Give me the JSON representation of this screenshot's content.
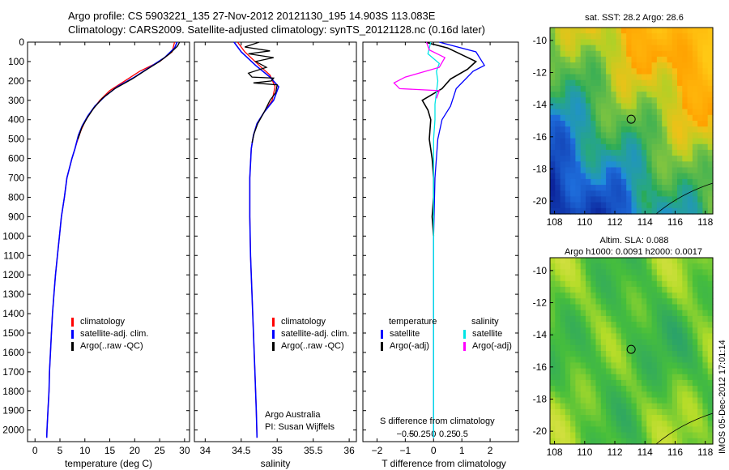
{
  "header": {
    "line1": "Argo profile: CS 5903221_135 27-Nov-2012 20121130_195 14.903S 113.083E",
    "line2": "Climatology: CARS2009. Satellite-adjusted climatology: synTS_20121128.nc (0.16d later)"
  },
  "colors": {
    "climatology": "#ff0000",
    "satellite": "#0000ff",
    "argo": "#000000",
    "sat_salinity": "#00e5e5",
    "argo_adj_salinity": "#ff00ff"
  },
  "chart_data": [
    {
      "id": "temperature",
      "type": "line",
      "xlabel": "temperature (deg C)",
      "xlim": [
        -1.5,
        31
      ],
      "ylim": [
        2060,
        0
      ],
      "xticks": [
        0,
        5,
        10,
        15,
        20,
        25,
        30
      ],
      "xtick_labels": [
        "0",
        "5",
        "10",
        "15",
        "20",
        "25",
        "30"
      ],
      "yticks": [
        0,
        100,
        200,
        300,
        400,
        500,
        600,
        700,
        800,
        900,
        1000,
        1100,
        1200,
        1300,
        1400,
        1500,
        1600,
        1700,
        1800,
        1900,
        2000
      ],
      "ytick_labels": [
        "0",
        "100",
        "200",
        "300",
        "400",
        "500",
        "600",
        "700",
        "800",
        "900",
        "1000",
        "1100",
        "1200",
        "1300",
        "1400",
        "1500",
        "1600",
        "1700",
        "1800",
        "1900",
        "2000"
      ],
      "series": [
        {
          "name": "climatology",
          "color": "#ff0000",
          "points": [
            [
              28,
              0
            ],
            [
              27.5,
              50
            ],
            [
              25,
              100
            ],
            [
              21,
              150
            ],
            [
              18,
              200
            ],
            [
              15,
              250
            ],
            [
              13,
              300
            ],
            [
              11.5,
              350
            ],
            [
              10.2,
              400
            ],
            [
              9.3,
              450
            ],
            [
              8.6,
              500
            ],
            [
              8,
              550
            ],
            [
              7.4,
              600
            ],
            [
              6.9,
              650
            ],
            [
              6.4,
              700
            ],
            [
              5.9,
              800
            ],
            [
              5.3,
              900
            ],
            [
              4.9,
              1000
            ],
            [
              4.5,
              1100
            ],
            [
              4.1,
              1200
            ],
            [
              3.8,
              1300
            ],
            [
              3.5,
              1400
            ],
            [
              3.3,
              1500
            ],
            [
              3.1,
              1600
            ],
            [
              2.9,
              1700
            ],
            [
              2.8,
              1800
            ],
            [
              2.6,
              1900
            ],
            [
              2.4,
              2000
            ],
            [
              2.35,
              2040
            ]
          ]
        },
        {
          "name": "satellite-adj. clim.",
          "color": "#0000ff",
          "points": [
            [
              28.5,
              0
            ],
            [
              28,
              30
            ],
            [
              26,
              80
            ],
            [
              23,
              130
            ],
            [
              20,
              180
            ],
            [
              16.5,
              230
            ],
            [
              14,
              280
            ],
            [
              12,
              330
            ],
            [
              10.6,
              380
            ],
            [
              9.5,
              430
            ],
            [
              8.7,
              480
            ],
            [
              8,
              550
            ],
            [
              7.4,
              600
            ],
            [
              6.9,
              650
            ],
            [
              6.4,
              700
            ],
            [
              5.9,
              800
            ],
            [
              5.3,
              900
            ],
            [
              4.9,
              1000
            ],
            [
              4.5,
              1100
            ],
            [
              4.1,
              1200
            ],
            [
              3.8,
              1300
            ],
            [
              3.5,
              1400
            ],
            [
              3.3,
              1500
            ],
            [
              3.1,
              1600
            ],
            [
              2.9,
              1700
            ],
            [
              2.8,
              1800
            ],
            [
              2.6,
              1900
            ],
            [
              2.4,
              2000
            ],
            [
              2.35,
              2040
            ]
          ]
        },
        {
          "name": "Argo(..raw -QC)",
          "color": "#000000",
          "points": [
            [
              29,
              0
            ],
            [
              28.6,
              20
            ],
            [
              27,
              60
            ],
            [
              25,
              100
            ],
            [
              22.5,
              140
            ],
            [
              19.5,
              190
            ],
            [
              16,
              240
            ],
            [
              13.5,
              290
            ],
            [
              11.8,
              340
            ],
            [
              10.5,
              390
            ],
            [
              9.4,
              440
            ],
            [
              8.6,
              500
            ]
          ]
        }
      ],
      "legend": [
        "climatology",
        "satellite-adj. clim.",
        "Argo(..raw -QC)"
      ]
    },
    {
      "id": "salinity",
      "type": "line",
      "xlabel": "salinity",
      "xlim": [
        33.85,
        36.1
      ],
      "ylim": [
        2060,
        0
      ],
      "xticks": [
        34,
        34.5,
        35,
        35.5,
        36
      ],
      "xtick_labels": [
        "34",
        "34.5",
        "35",
        "35.5",
        "36"
      ],
      "series": [
        {
          "name": "climatology",
          "color": "#ff0000",
          "points": [
            [
              34.45,
              0
            ],
            [
              34.55,
              50
            ],
            [
              34.75,
              120
            ],
            [
              34.9,
              170
            ],
            [
              34.97,
              230
            ],
            [
              34.93,
              300
            ],
            [
              34.82,
              360
            ],
            [
              34.72,
              420
            ],
            [
              34.67,
              480
            ],
            [
              34.64,
              550
            ],
            [
              34.62,
              700
            ],
            [
              34.62,
              900
            ],
            [
              34.63,
              1100
            ],
            [
              34.65,
              1300
            ],
            [
              34.67,
              1500
            ],
            [
              34.69,
              1700
            ],
            [
              34.71,
              1900
            ],
            [
              34.72,
              2040
            ]
          ]
        },
        {
          "name": "satellite-adj. clim.",
          "color": "#0000ff",
          "points": [
            [
              34.4,
              0
            ],
            [
              34.5,
              50
            ],
            [
              34.7,
              120
            ],
            [
              34.9,
              180
            ],
            [
              35.02,
              230
            ],
            [
              34.95,
              300
            ],
            [
              34.82,
              360
            ],
            [
              34.72,
              420
            ],
            [
              34.67,
              480
            ],
            [
              34.64,
              550
            ],
            [
              34.62,
              700
            ],
            [
              34.62,
              900
            ],
            [
              34.63,
              1100
            ],
            [
              34.65,
              1300
            ],
            [
              34.67,
              1500
            ],
            [
              34.69,
              1700
            ],
            [
              34.71,
              1900
            ],
            [
              34.72,
              2040
            ]
          ]
        },
        {
          "name": "Argo(..raw -QC)",
          "color": "#000000",
          "points": [
            [
              34.75,
              0
            ],
            [
              34.55,
              25
            ],
            [
              34.9,
              45
            ],
            [
              34.6,
              60
            ],
            [
              34.95,
              80
            ],
            [
              34.7,
              100
            ],
            [
              34.85,
              130
            ],
            [
              34.6,
              160
            ],
            [
              34.65,
              180
            ],
            [
              34.95,
              185
            ],
            [
              34.92,
              200
            ],
            [
              34.67,
              210
            ],
            [
              35,
              220
            ],
            [
              34.98,
              260
            ],
            [
              34.9,
              300
            ],
            [
              34.82,
              360
            ],
            [
              34.73,
              420
            ],
            [
              34.68,
              470
            ],
            [
              34.65,
              520
            ]
          ]
        }
      ],
      "legend": [
        "climatology",
        "satellite-adj. clim.",
        "Argo(..raw -QC)"
      ],
      "annotation": [
        "Argo Australia",
        "PI: Susan Wijffels"
      ]
    },
    {
      "id": "difference",
      "type": "line",
      "xlabel": "T difference from climatology",
      "xlabel_top": "S difference from climatology",
      "xlim": [
        -2.5,
        3
      ],
      "ylim": [
        2060,
        0
      ],
      "xticks": [
        -2,
        -1,
        0,
        1,
        2
      ],
      "xtick_labels": [
        "−2",
        "−1",
        "0",
        "1",
        "2"
      ],
      "s_tick_labels": [
        "−0.5",
        "−0.25",
        "0",
        "0.25",
        "0.5"
      ],
      "series": [
        {
          "name": "temperature satellite",
          "color": "#0000ff",
          "points": [
            [
              0.2,
              0
            ],
            [
              1.5,
              50
            ],
            [
              1.8,
              120
            ],
            [
              1.4,
              150
            ],
            [
              0.8,
              240
            ],
            [
              0.6,
              330
            ],
            [
              0.3,
              400
            ],
            [
              0.15,
              500
            ],
            [
              0.05,
              700
            ],
            [
              0,
              1000
            ],
            [
              0,
              2040
            ]
          ]
        },
        {
          "name": "temperature Argo(-adj)",
          "color": "#000000",
          "points": [
            [
              -0.3,
              0
            ],
            [
              0.5,
              30
            ],
            [
              1.5,
              100
            ],
            [
              1.2,
              140
            ],
            [
              0.6,
              190
            ],
            [
              0.3,
              240
            ],
            [
              -0.4,
              300
            ],
            [
              -0.2,
              350
            ],
            [
              -0.1,
              400
            ],
            [
              -0.15,
              500
            ],
            [
              -0.05,
              600
            ],
            [
              0,
              700
            ],
            [
              0,
              800
            ],
            [
              -0.05,
              900
            ],
            [
              0,
              1000
            ]
          ]
        },
        {
          "name": "salinity satellite",
          "color": "#00e5e5",
          "points": [
            [
              -0.1,
              0
            ],
            [
              -0.2,
              60
            ],
            [
              0.2,
              110
            ],
            [
              0.1,
              150
            ],
            [
              0.15,
              200
            ],
            [
              0.1,
              260
            ],
            [
              0.05,
              320
            ],
            [
              0.05,
              400
            ],
            [
              0,
              500
            ],
            [
              0,
              700
            ],
            [
              0,
              1000
            ],
            [
              0,
              2040
            ]
          ]
        },
        {
          "name": "salinity Argo(-adj)",
          "color": "#ff00ff",
          "points": [
            [
              -0.25,
              0
            ],
            [
              -0.15,
              40
            ],
            [
              0.4,
              80
            ],
            [
              0.2,
              130
            ],
            [
              -1,
              180
            ],
            [
              -1.4,
              210
            ],
            [
              -1.2,
              240
            ],
            [
              0.2,
              250
            ],
            [
              0.1,
              290
            ]
          ]
        }
      ],
      "legend_header": [
        "temperature",
        "salinity"
      ],
      "legend_t": [
        "satellite",
        "Argo(-adj)"
      ],
      "legend_s": [
        "satellite",
        "Argo(-adj)"
      ]
    }
  ],
  "maps": [
    {
      "id": "sst-map",
      "title": "sat. SST: 28.2 Argo: 28.6",
      "xticks": [
        "108",
        "110",
        "112",
        "114",
        "116",
        "118"
      ],
      "yticks": [
        "-10",
        "-12",
        "-14",
        "-16",
        "-18",
        "-20"
      ],
      "marker_lon": 113.083,
      "marker_lat": -14.903
    },
    {
      "id": "sla-map",
      "title_line1": "Altim. SLA: 0.088",
      "title_line2": "Argo h1000: 0.0091 h2000: 0.0017",
      "xticks": [
        "108",
        "110",
        "112",
        "114",
        "116",
        "118"
      ],
      "yticks": [
        "-10",
        "-12",
        "-14",
        "-16",
        "-18",
        "-20"
      ],
      "marker_lon": 113.083,
      "marker_lat": -14.903
    }
  ],
  "footer": {
    "stamp": "IMOS 05-Dec-2012 17:01:14"
  }
}
